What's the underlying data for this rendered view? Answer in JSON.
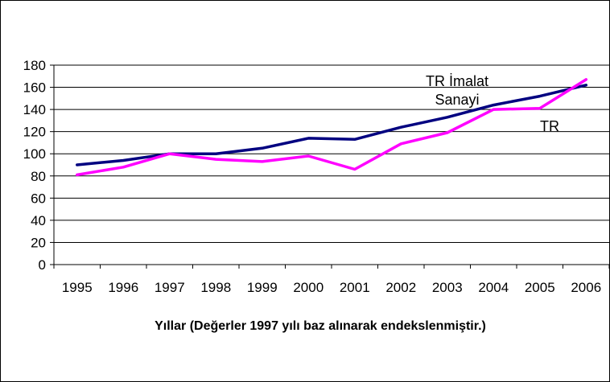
{
  "chart_data": {
    "type": "line",
    "title": "",
    "xlabel": "Yıllar (Değerler 1997 yılı baz alınarak endekslenmiştir.)",
    "ylabel": "",
    "ylim": [
      0,
      180
    ],
    "yticks": [
      "0",
      "20",
      "40",
      "60",
      "80",
      "100",
      "120",
      "140",
      "160",
      "180"
    ],
    "grid": true,
    "legend": "none",
    "categories": [
      "1995",
      "1996",
      "1997",
      "1998",
      "1999",
      "2000",
      "2001",
      "2002",
      "2003",
      "2004",
      "2005",
      "2006"
    ],
    "series": [
      {
        "name": "TR İmalat Sanayi",
        "label_lines": [
          "TR İmalat",
          "Sanayi"
        ],
        "color": "#000080",
        "values": [
          90,
          94,
          100,
          100,
          105,
          114,
          113,
          124,
          133,
          144,
          152,
          162
        ]
      },
      {
        "name": "TR",
        "label_lines": [
          "TR"
        ],
        "color": "#ff00ff",
        "values": [
          81,
          88,
          100,
          95,
          93,
          98,
          86,
          109,
          119,
          140,
          141,
          167
        ]
      }
    ]
  }
}
